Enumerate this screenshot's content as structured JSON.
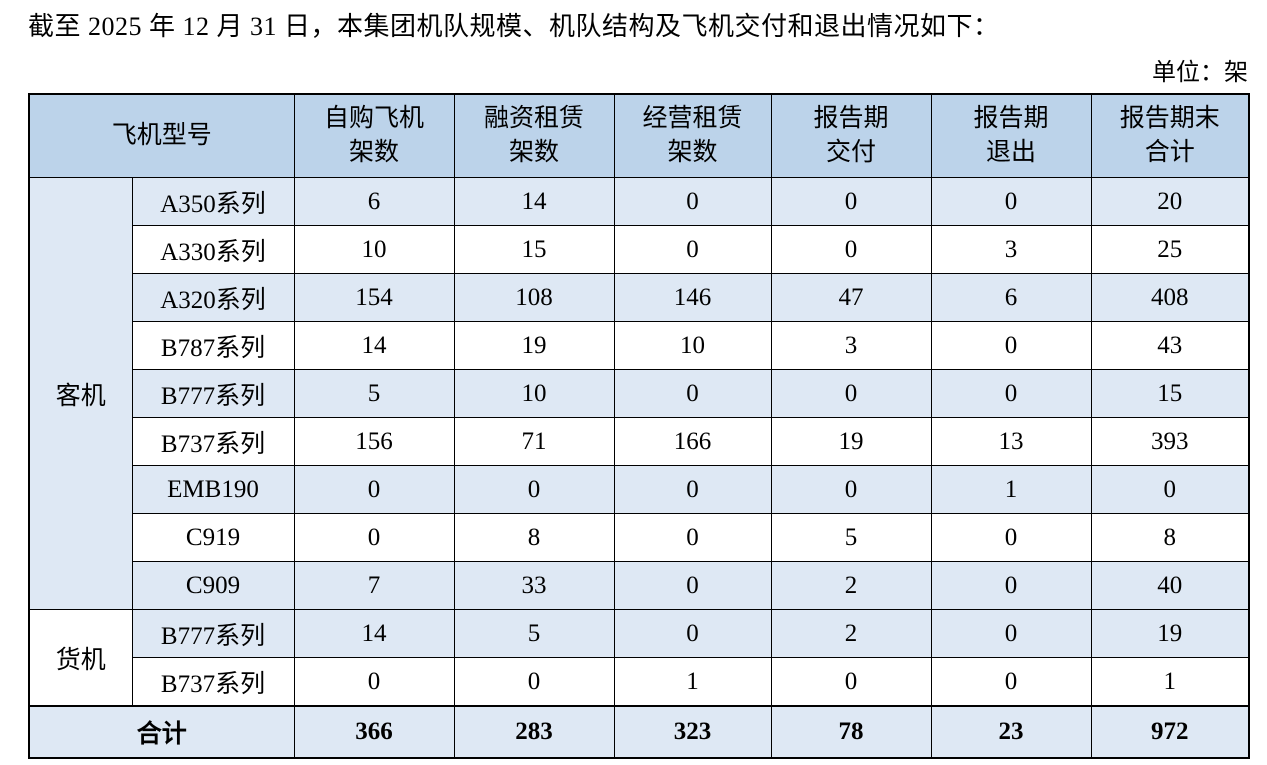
{
  "page": {
    "title": "截至 2025 年 12 月 31 日，本集团机队规模、机队结构及飞机交付和退出情况如下：",
    "unit_label": "单位：架"
  },
  "colors": {
    "header_bg": "#bcd3ea",
    "row_alt_bg": "#dee8f4",
    "row_bg": "#ffffff",
    "border": "#000000",
    "text": "#000000"
  },
  "table": {
    "headers": {
      "model": "飞机型号",
      "owned_line1": "自购飞机",
      "owned_line2": "架数",
      "finance_lease_line1": "融资租赁",
      "finance_lease_line2": "架数",
      "operating_lease_line1": "经营租赁",
      "operating_lease_line2": "架数",
      "delivered_line1": "报告期",
      "delivered_line2": "交付",
      "exited_line1": "报告期",
      "exited_line2": "退出",
      "period_end_line1": "报告期末",
      "period_end_line2": "合计"
    },
    "groups": [
      {
        "label": "客机",
        "rows": [
          {
            "model": "A350系列",
            "values": [
              6,
              14,
              0,
              0,
              0,
              20
            ]
          },
          {
            "model": "A330系列",
            "values": [
              10,
              15,
              0,
              0,
              3,
              25
            ]
          },
          {
            "model": "A320系列",
            "values": [
              154,
              108,
              146,
              47,
              6,
              408
            ]
          },
          {
            "model": "B787系列",
            "values": [
              14,
              19,
              10,
              3,
              0,
              43
            ]
          },
          {
            "model": "B777系列",
            "values": [
              5,
              10,
              0,
              0,
              0,
              15
            ]
          },
          {
            "model": "B737系列",
            "values": [
              156,
              71,
              166,
              19,
              13,
              393
            ]
          },
          {
            "model": "EMB190",
            "values": [
              0,
              0,
              0,
              0,
              1,
              0
            ]
          },
          {
            "model": "C919",
            "values": [
              0,
              8,
              0,
              5,
              0,
              8
            ]
          },
          {
            "model": "C909",
            "values": [
              7,
              33,
              0,
              2,
              0,
              40
            ]
          }
        ]
      },
      {
        "label": "货机",
        "rows": [
          {
            "model": "B777系列",
            "values": [
              14,
              5,
              0,
              2,
              0,
              19
            ]
          },
          {
            "model": "B737系列",
            "values": [
              0,
              0,
              1,
              0,
              0,
              1
            ]
          }
        ]
      }
    ],
    "total": {
      "label": "合计",
      "values": [
        366,
        283,
        323,
        78,
        23,
        972
      ]
    }
  }
}
